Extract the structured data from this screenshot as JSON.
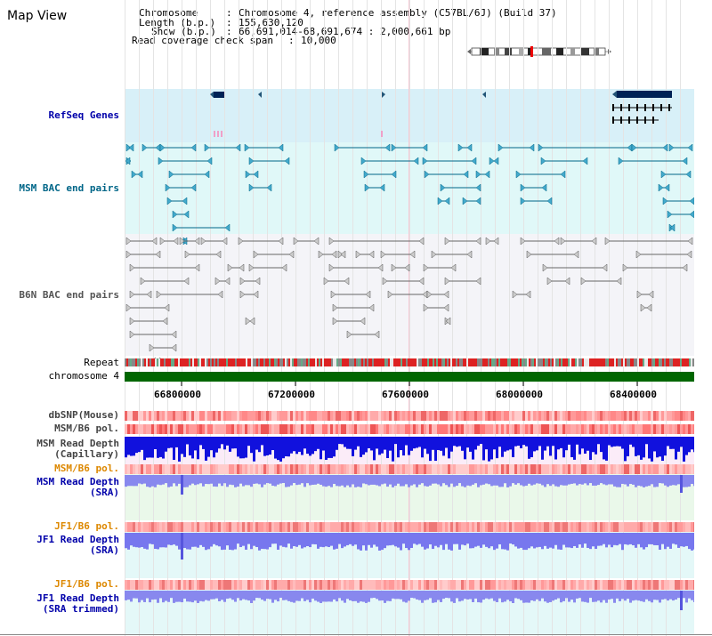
{
  "header": {
    "title": "Map View",
    "chromosome_key": "Chromosome",
    "chromosome_value": "Chromosome 4, reference assembly (C57BL/6J) (Build 37)",
    "length_key": "Length (b.p.)",
    "length_value": "155,630,120",
    "show_key": "Show (b.p.)",
    "show_value": "66,691,014-68,691,674 : 2,000,661 bp",
    "coverage_key": "Read coverage check span",
    "coverage_value": "10,000"
  },
  "tracks": {
    "refseq": "RefSeq Genes",
    "msm_bac": "MSM BAC end pairs",
    "b6n_bac": "B6N BAC end pairs",
    "repeat": "Repeat",
    "chromosome": "chromosome 4",
    "dbsnp": "dbSNP(Mouse)",
    "msm_b6_pol_1": "MSM/B6 pol.",
    "msm_depth_cap_1": "MSM Read Depth",
    "msm_depth_cap_2": "(Capillary)",
    "msm_b6_pol_2": "MSM/B6 pol.",
    "msm_depth_sra_1": "MSM Read Depth",
    "msm_depth_sra_2": "(SRA)",
    "jf1_b6_pol_1": "JF1/B6 pol.",
    "jf1_depth_sra_1": "JF1 Read Depth",
    "jf1_depth_sra_2": "(SRA)",
    "jf1_b6_pol_2": "JF1/B6 pol.",
    "jf1_depth_trim_1": "JF1 Read Depth",
    "jf1_depth_trim_2": "(SRA trimmed)"
  },
  "axis": {
    "ticks": [
      "66800000",
      "67200000",
      "67600000",
      "68000000",
      "68400000"
    ]
  },
  "colors": {
    "label_blue": "#0000aa",
    "label_teal": "#006688",
    "label_gray": "#444444",
    "label_orange": "#dd8800",
    "chromosome_bar": "#006600",
    "depth_blue": "#1111dd",
    "depth_light": "#7777ee"
  }
}
